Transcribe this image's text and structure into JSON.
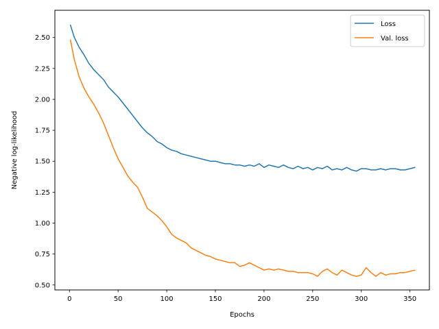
{
  "chart_data": {
    "type": "line",
    "title": "",
    "xlabel": "Epochs",
    "ylabel": "Negative log-likelihood",
    "xlim": [
      -15,
      370
    ],
    "ylim": [
      0.46,
      2.72
    ],
    "xticks": [
      0,
      50,
      100,
      150,
      200,
      250,
      300,
      350
    ],
    "yticks": [
      0.5,
      0.75,
      1.0,
      1.25,
      1.5,
      1.75,
      2.0,
      2.25,
      2.5
    ],
    "ytick_format_decimals": 2,
    "grid": false,
    "legend_position": "top-right",
    "series": [
      {
        "name": "Loss",
        "color": "#1f77b4",
        "x": [
          1,
          5,
          10,
          15,
          20,
          25,
          30,
          35,
          40,
          45,
          50,
          55,
          60,
          65,
          70,
          75,
          80,
          85,
          90,
          95,
          100,
          105,
          110,
          115,
          120,
          125,
          130,
          135,
          140,
          145,
          150,
          155,
          160,
          165,
          170,
          175,
          180,
          185,
          190,
          195,
          200,
          205,
          210,
          215,
          220,
          225,
          230,
          235,
          240,
          245,
          250,
          255,
          260,
          265,
          270,
          275,
          280,
          285,
          290,
          295,
          300,
          305,
          310,
          315,
          320,
          325,
          330,
          335,
          340,
          345,
          350,
          355
        ],
        "y": [
          2.6,
          2.5,
          2.42,
          2.36,
          2.29,
          2.24,
          2.2,
          2.16,
          2.1,
          2.06,
          2.02,
          1.97,
          1.92,
          1.87,
          1.82,
          1.77,
          1.73,
          1.7,
          1.66,
          1.64,
          1.61,
          1.59,
          1.58,
          1.56,
          1.55,
          1.54,
          1.53,
          1.52,
          1.51,
          1.5,
          1.5,
          1.49,
          1.48,
          1.48,
          1.47,
          1.47,
          1.46,
          1.47,
          1.46,
          1.48,
          1.45,
          1.47,
          1.46,
          1.45,
          1.47,
          1.45,
          1.44,
          1.46,
          1.44,
          1.45,
          1.43,
          1.45,
          1.44,
          1.46,
          1.43,
          1.44,
          1.43,
          1.45,
          1.43,
          1.42,
          1.44,
          1.44,
          1.43,
          1.43,
          1.44,
          1.43,
          1.44,
          1.44,
          1.43,
          1.43,
          1.44,
          1.45
        ]
      },
      {
        "name": "Val. loss",
        "color": "#ff7f0e",
        "x": [
          1,
          5,
          10,
          15,
          20,
          25,
          30,
          35,
          40,
          45,
          50,
          55,
          60,
          65,
          70,
          75,
          80,
          85,
          90,
          95,
          100,
          105,
          110,
          115,
          120,
          125,
          130,
          135,
          140,
          145,
          150,
          155,
          160,
          165,
          170,
          175,
          180,
          185,
          190,
          195,
          200,
          205,
          210,
          215,
          220,
          225,
          230,
          235,
          240,
          245,
          250,
          255,
          260,
          265,
          270,
          275,
          280,
          285,
          290,
          295,
          300,
          305,
          310,
          315,
          320,
          325,
          330,
          335,
          340,
          345,
          350,
          355
        ],
        "y": [
          2.48,
          2.32,
          2.18,
          2.09,
          2.02,
          1.96,
          1.89,
          1.81,
          1.71,
          1.61,
          1.52,
          1.45,
          1.38,
          1.33,
          1.29,
          1.21,
          1.12,
          1.09,
          1.06,
          1.02,
          0.97,
          0.91,
          0.88,
          0.86,
          0.84,
          0.8,
          0.78,
          0.76,
          0.74,
          0.73,
          0.71,
          0.7,
          0.69,
          0.68,
          0.68,
          0.65,
          0.66,
          0.68,
          0.66,
          0.64,
          0.62,
          0.63,
          0.62,
          0.63,
          0.62,
          0.61,
          0.61,
          0.6,
          0.6,
          0.6,
          0.59,
          0.57,
          0.61,
          0.63,
          0.6,
          0.58,
          0.62,
          0.6,
          0.58,
          0.57,
          0.58,
          0.64,
          0.6,
          0.57,
          0.6,
          0.58,
          0.59,
          0.59,
          0.6,
          0.6,
          0.61,
          0.62
        ]
      }
    ]
  }
}
